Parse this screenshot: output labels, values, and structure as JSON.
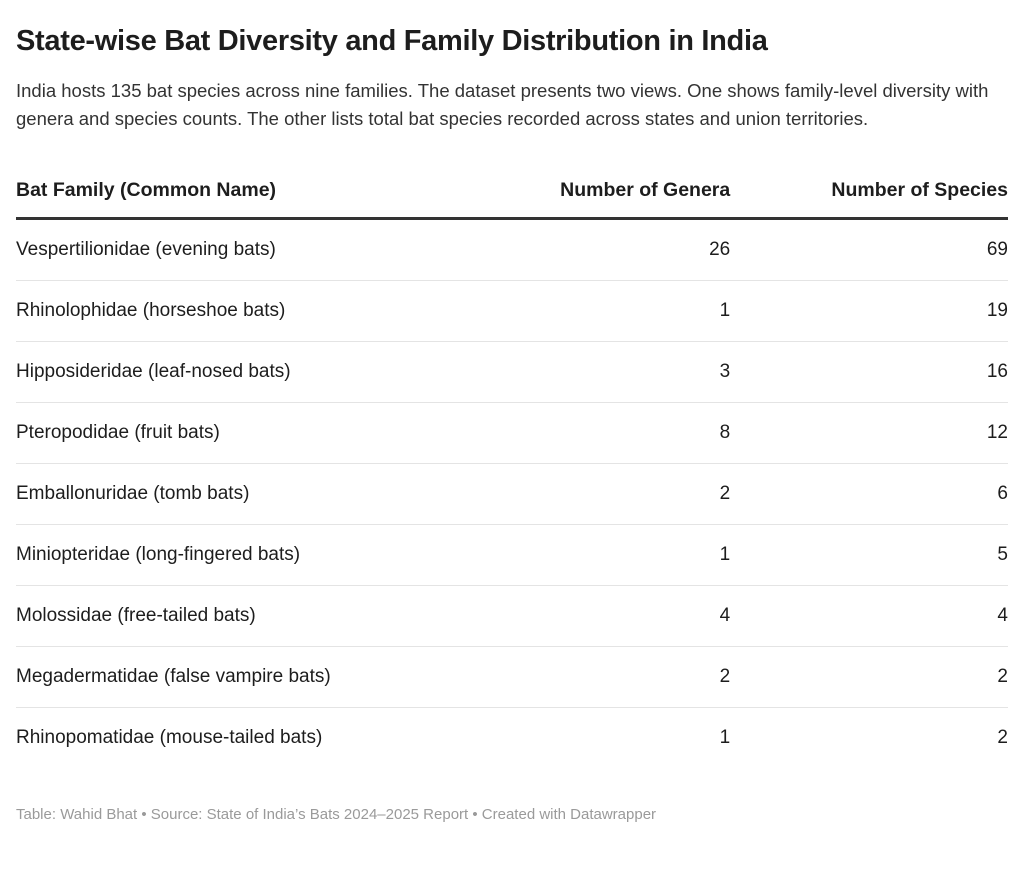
{
  "page": {
    "title": "State-wise Bat Diversity and Family Distribution in India",
    "description": "India hosts 135 bat species across nine families. The dataset presents two views. One shows family-level diversity with genera and species counts. The other lists total bat species recorded across states and union territories.",
    "footer": "Table: Wahid Bhat • Source: State of India’s Bats 2024–2025 Report • Created with Datawrapper"
  },
  "chart_data": {
    "type": "table",
    "title": "State-wise Bat Diversity and Family Distribution in India",
    "columns": [
      "Bat Family (Common Name)",
      "Number of Genera",
      "Number of Species"
    ],
    "rows": [
      {
        "family": "Vespertilionidae (evening bats)",
        "genera": "26",
        "species": "69"
      },
      {
        "family": "Rhinolophidae (horseshoe bats)",
        "genera": "1",
        "species": "19"
      },
      {
        "family": "Hipposideridae (leaf-nosed bats)",
        "genera": "3",
        "species": "16"
      },
      {
        "family": "Pteropodidae (fruit bats)",
        "genera": "8",
        "species": "12"
      },
      {
        "family": "Emballonuridae (tomb bats)",
        "genera": "2",
        "species": "6"
      },
      {
        "family": "Miniopteridae (long-fingered bats)",
        "genera": "1",
        "species": "5"
      },
      {
        "family": "Molossidae (free-tailed bats)",
        "genera": "4",
        "species": "4"
      },
      {
        "family": "Megadermatidae (false vampire bats)",
        "genera": "2",
        "species": "2"
      },
      {
        "family": "Rhinopomatidae (mouse-tailed bats)",
        "genera": "1",
        "species": "2"
      }
    ],
    "layout": {
      "value_alignment": "right",
      "header_rule_color": "#333333",
      "row_rule_color": "#e4e4e4"
    },
    "totals_note": "135 bat species across nine families"
  },
  "colors": {
    "text": "#1d1d1d",
    "body_text": "#333333",
    "muted": "#9a9a9a",
    "background": "#ffffff"
  }
}
